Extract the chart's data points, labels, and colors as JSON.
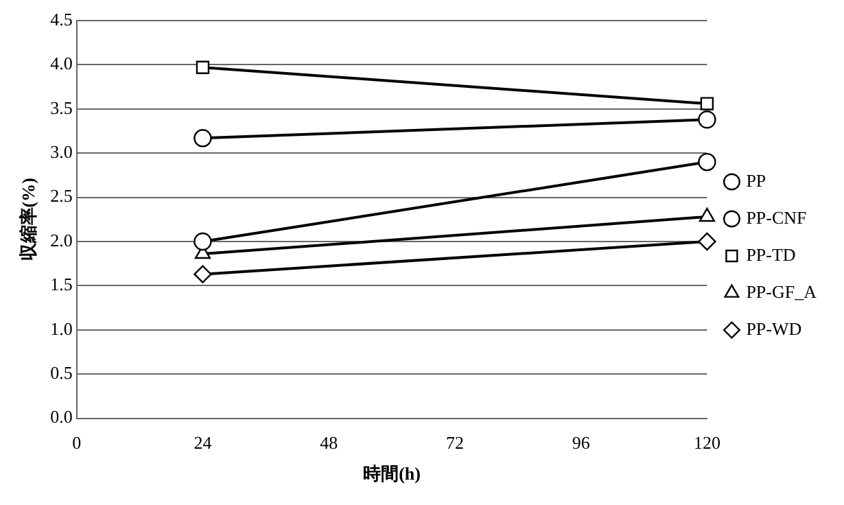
{
  "chart_data": {
    "type": "line",
    "xlabel": "時間(h)",
    "ylabel": "収縮率(%)",
    "x": [
      24,
      120
    ],
    "series": [
      {
        "name": "PP",
        "color": "#000000",
        "marker": "circle",
        "values": [
          2.0,
          2.9
        ]
      },
      {
        "name": "PP-CNF",
        "color": "#000000",
        "marker": "circle",
        "values": [
          3.17,
          3.38
        ]
      },
      {
        "name": "PP-TD",
        "color": "#000000",
        "marker": "square",
        "values": [
          3.97,
          3.56
        ]
      },
      {
        "name": "PP-GF_A",
        "color": "#000000",
        "marker": "triangle",
        "values": [
          1.86,
          2.28
        ]
      },
      {
        "name": "PP-WD",
        "color": "#000000",
        "marker": "diamond",
        "values": [
          1.63,
          2.0
        ]
      }
    ],
    "xlim": [
      0,
      120
    ],
    "xticks": [
      0,
      24,
      48,
      72,
      96,
      120
    ],
    "ylim": [
      0,
      4.5
    ],
    "yticks": [
      {
        "value": 0,
        "label": "0.0"
      },
      0.5,
      {
        "value": 1,
        "label": "1.0"
      },
      1.5,
      {
        "value": 2,
        "label": "2.0"
      },
      2.5,
      {
        "value": 3,
        "label": "3.0"
      },
      3.5,
      {
        "value": 4,
        "label": "4.0"
      },
      4.5
    ],
    "grid": "y",
    "legend": "right",
    "line_style": "solid"
  }
}
